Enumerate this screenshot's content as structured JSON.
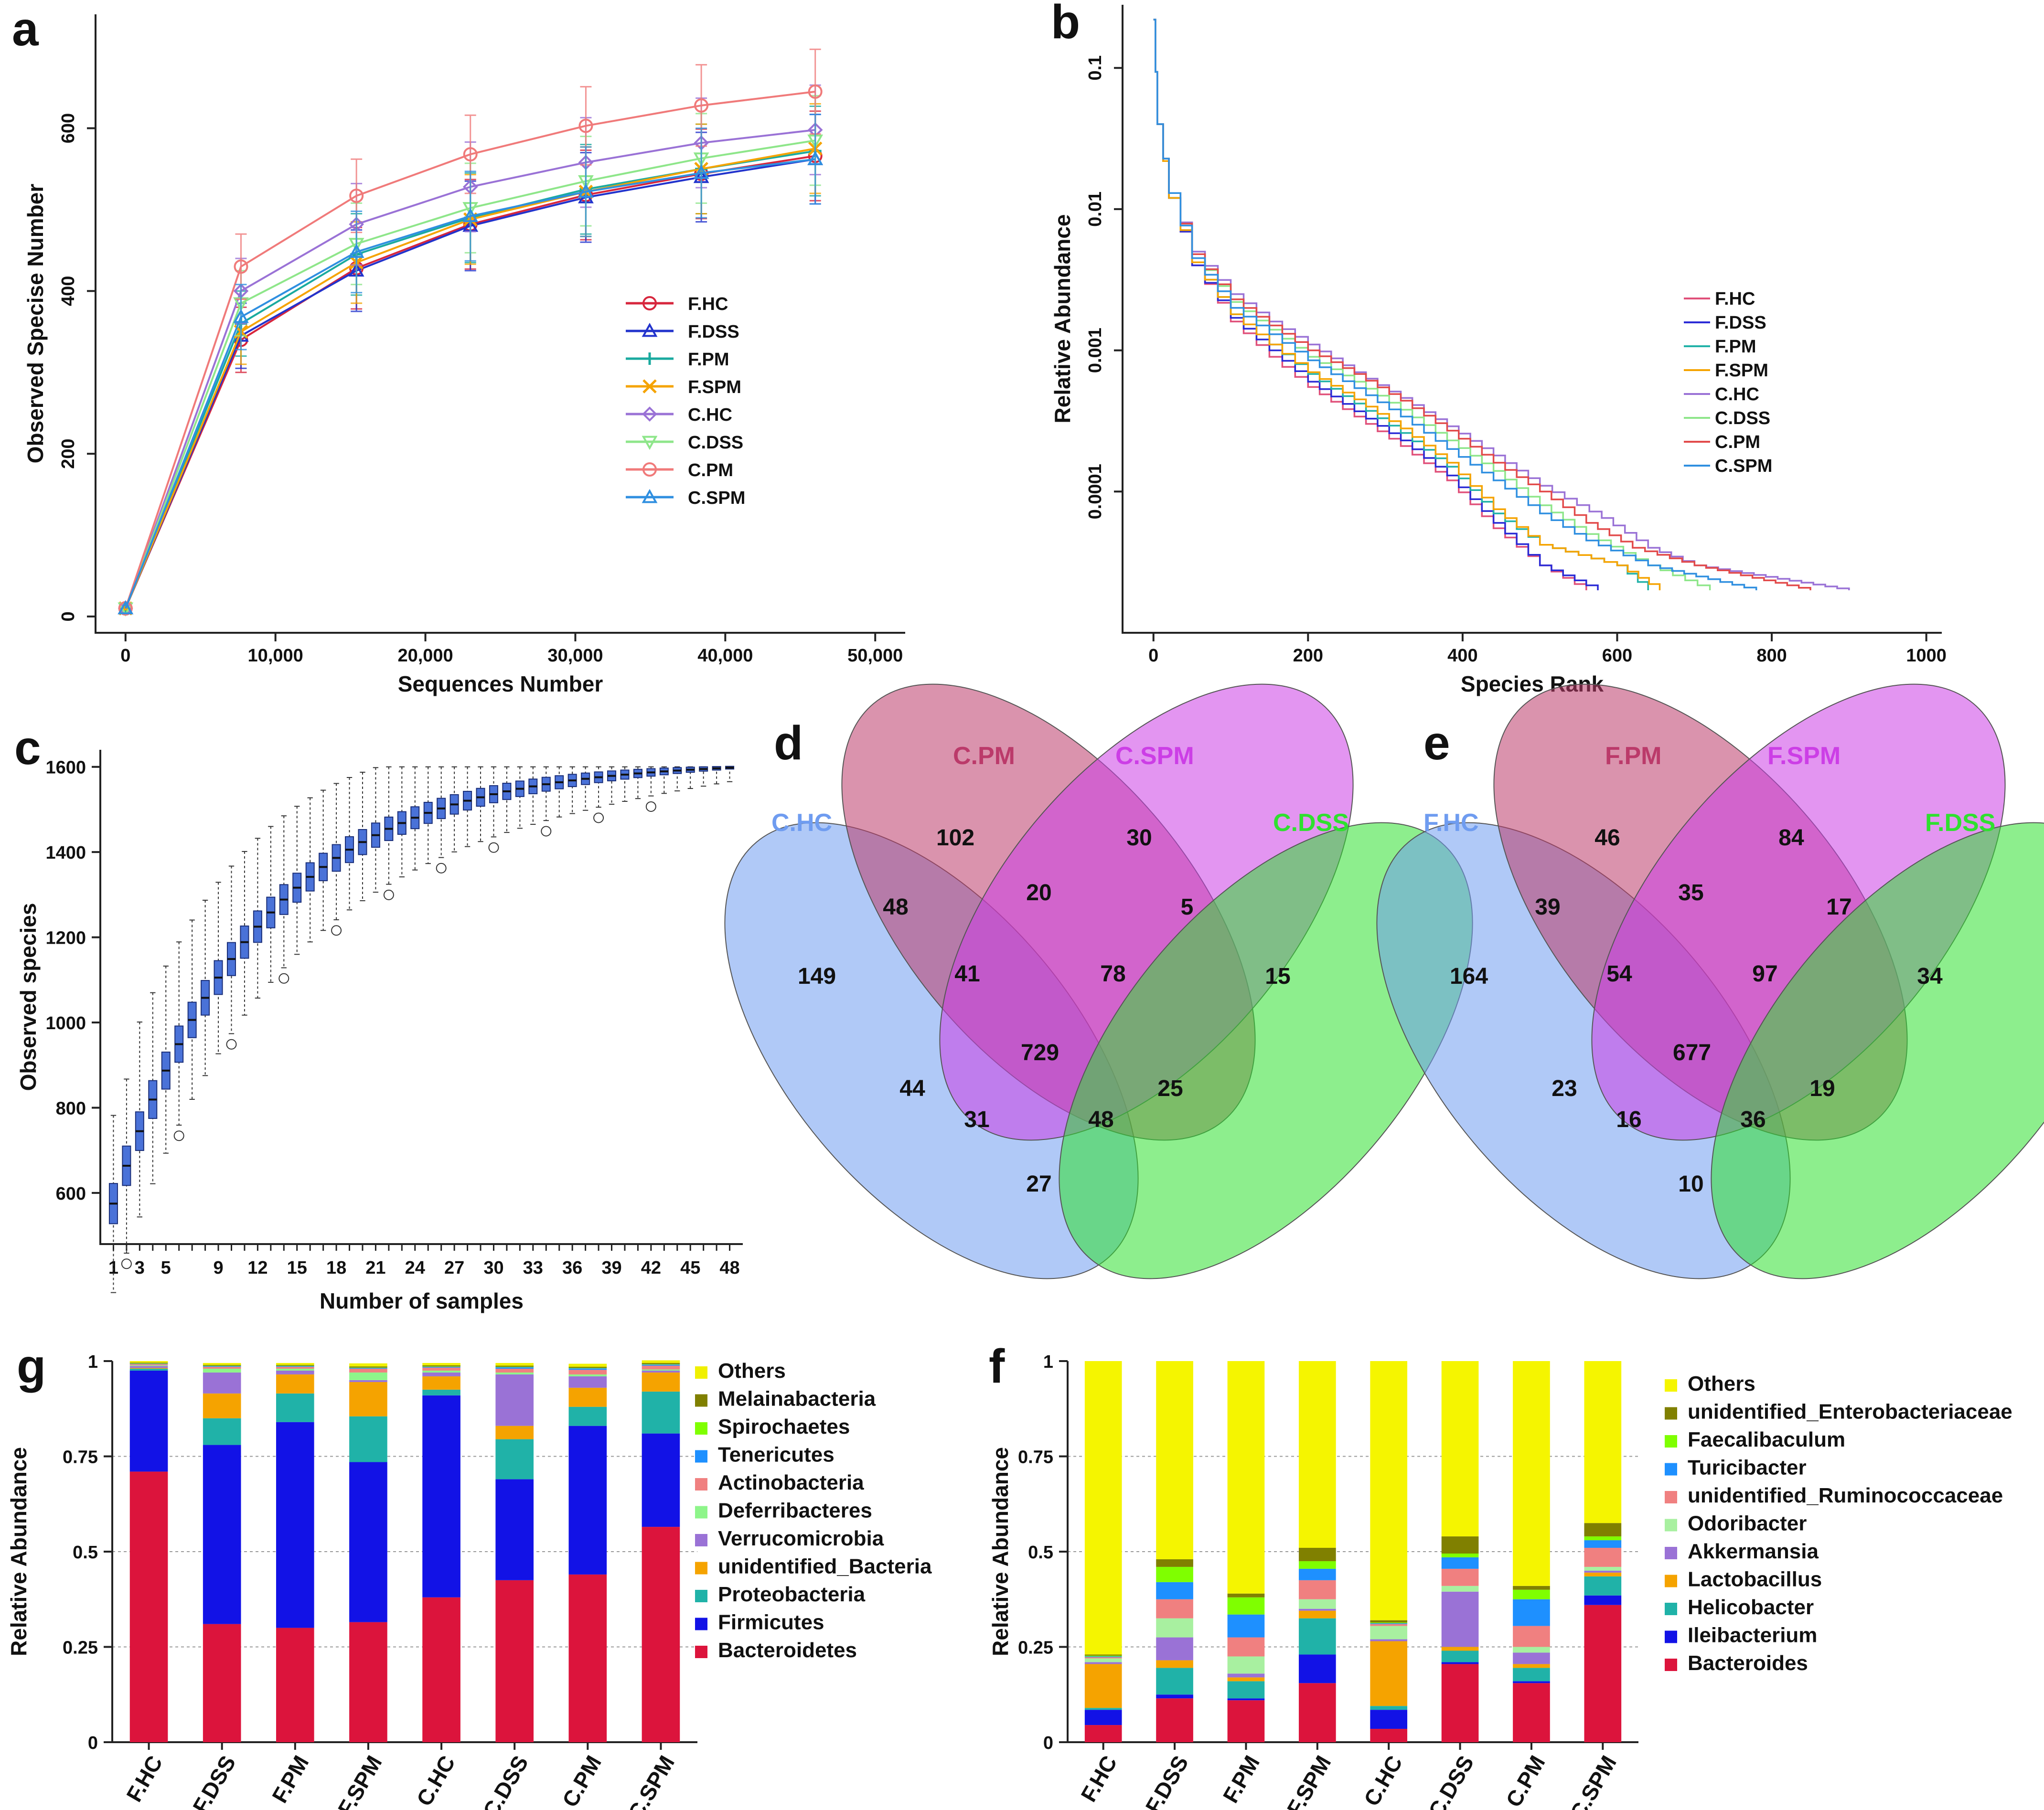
{
  "panels": {
    "a": {
      "label": "a"
    },
    "b": {
      "label": "b"
    },
    "c": {
      "label": "c"
    },
    "d": {
      "label": "d"
    },
    "e": {
      "label": "e"
    },
    "g": {
      "label": "g"
    },
    "f": {
      "label": "f"
    }
  },
  "chart_data": [
    {
      "id": "a",
      "type": "line",
      "xlabel": "Sequences  Number",
      "ylabel": "Observed  Specise  Number",
      "xlim": [
        -2000,
        52000
      ],
      "ylim": [
        -20,
        740
      ],
      "xticks": [
        0,
        10000,
        20000,
        30000,
        40000,
        50000
      ],
      "xtick_labels": [
        "0",
        "10,000",
        "20,000",
        "30,000",
        "40,000",
        "50,000"
      ],
      "yticks": [
        0,
        200,
        400,
        600
      ],
      "ytick_labels": [
        "0",
        "200",
        "400",
        "600"
      ],
      "legend_position": "center-right",
      "x": [
        0,
        7700,
        15400,
        23000,
        30700,
        38400,
        46000
      ],
      "series": [
        {
          "name": "F.HC",
          "color": "#d7263d",
          "marker": "circle",
          "values": [
            10,
            340,
            428,
            482,
            518,
            544,
            566
          ],
          "err": [
            0,
            40,
            50,
            55,
            55,
            55,
            55
          ]
        },
        {
          "name": "F.DSS",
          "color": "#2233cc",
          "marker": "triangle",
          "values": [
            10,
            345,
            425,
            480,
            515,
            540,
            562
          ],
          "err": [
            0,
            40,
            50,
            55,
            55,
            55,
            55
          ]
        },
        {
          "name": "F.PM",
          "color": "#1aaa9f",
          "marker": "plus",
          "values": [
            10,
            360,
            445,
            490,
            525,
            550,
            572
          ],
          "err": [
            0,
            40,
            50,
            55,
            55,
            55,
            55
          ]
        },
        {
          "name": "F.SPM",
          "color": "#f5a300",
          "marker": "x",
          "values": [
            10,
            350,
            435,
            488,
            522,
            550,
            575
          ],
          "err": [
            0,
            40,
            50,
            55,
            55,
            55,
            55
          ]
        },
        {
          "name": "C.HC",
          "color": "#9a72d6",
          "marker": "diamond",
          "values": [
            10,
            400,
            482,
            528,
            558,
            582,
            598
          ],
          "err": [
            0,
            40,
            50,
            55,
            55,
            55,
            55
          ]
        },
        {
          "name": "C.DSS",
          "color": "#8ee68a",
          "marker": "triangle-down",
          "values": [
            10,
            385,
            458,
            502,
            535,
            563,
            585
          ],
          "err": [
            0,
            40,
            50,
            55,
            55,
            55,
            55
          ]
        },
        {
          "name": "C.PM",
          "color": "#f07a7a",
          "marker": "circle",
          "values": [
            10,
            430,
            517,
            568,
            603,
            628,
            645
          ],
          "err": [
            0,
            40,
            45,
            48,
            48,
            50,
            52
          ]
        },
        {
          "name": "C.SPM",
          "color": "#2f8fe0",
          "marker": "triangle",
          "values": [
            10,
            368,
            448,
            492,
            522,
            545,
            562
          ],
          "err": [
            0,
            40,
            50,
            55,
            55,
            55,
            55
          ]
        }
      ]
    },
    {
      "id": "b",
      "type": "line",
      "xlabel": "Species  Rank",
      "ylabel": "Relative  Abundance",
      "y_scale": "log",
      "xlim": [
        -40,
        1020
      ],
      "xticks": [
        0,
        200,
        400,
        600,
        800,
        1000
      ],
      "xtick_labels": [
        "0",
        "200",
        "400",
        "600",
        "800",
        "1000"
      ],
      "yticks": [
        0.0001,
        0.001,
        0.01,
        0.1
      ],
      "ytick_labels": [
        "0.0001",
        "0.001",
        "0.01",
        "0.1"
      ],
      "legend_position": "center-right",
      "series": [
        {
          "name": "F.HC",
          "color": "#e0507a",
          "rank": [
            0,
            5,
            20,
            50,
            100,
            150,
            200,
            260,
            320,
            380,
            440,
            500,
            560
          ],
          "values": [
            0.22,
            0.04,
            0.012,
            0.004,
            0.0016,
            0.0009,
            0.00055,
            0.00034,
            0.00021,
            0.00012,
            5.5e-05,
            3e-05,
            2e-05
          ]
        },
        {
          "name": "F.DSS",
          "color": "#2b2bd6",
          "rank": [
            0,
            5,
            20,
            50,
            100,
            150,
            200,
            260,
            320,
            380,
            440,
            500,
            575
          ],
          "values": [
            0.22,
            0.04,
            0.012,
            0.004,
            0.0017,
            0.001,
            0.0006,
            0.00037,
            0.00023,
            0.00013,
            6e-05,
            3e-05,
            2e-05
          ]
        },
        {
          "name": "F.PM",
          "color": "#22b2a8",
          "rank": [
            0,
            5,
            20,
            50,
            100,
            150,
            200,
            260,
            320,
            380,
            440,
            500,
            600,
            640
          ],
          "values": [
            0.22,
            0.04,
            0.012,
            0.0042,
            0.0018,
            0.0011,
            0.00068,
            0.00042,
            0.00026,
            0.00015,
            7e-05,
            4.2e-05,
            3e-05,
            2e-05
          ]
        },
        {
          "name": "F.SPM",
          "color": "#f5a300",
          "rank": [
            0,
            5,
            20,
            50,
            100,
            150,
            200,
            260,
            320,
            380,
            440,
            500,
            600,
            655
          ],
          "values": [
            0.22,
            0.04,
            0.012,
            0.0042,
            0.0018,
            0.0011,
            0.0007,
            0.00045,
            0.00028,
            0.00016,
            7.5e-05,
            4.2e-05,
            3e-05,
            2e-05
          ]
        },
        {
          "name": "C.HC",
          "color": "#9a72d6",
          "rank": [
            0,
            5,
            20,
            50,
            100,
            150,
            200,
            260,
            320,
            380,
            440,
            500,
            580,
            640,
            700,
            900
          ],
          "values": [
            0.22,
            0.04,
            0.013,
            0.005,
            0.0025,
            0.0016,
            0.0011,
            0.0007,
            0.00046,
            0.00029,
            0.00018,
            0.00011,
            6.5e-05,
            4e-05,
            3e-05,
            2e-05
          ]
        },
        {
          "name": "C.DSS",
          "color": "#8ee68a",
          "rank": [
            0,
            5,
            20,
            50,
            100,
            150,
            200,
            260,
            320,
            380,
            440,
            500,
            560,
            640,
            720
          ],
          "values": [
            0.22,
            0.04,
            0.013,
            0.0048,
            0.0022,
            0.0014,
            0.0009,
            0.0006,
            0.00038,
            0.00023,
            0.00014,
            8e-05,
            5e-05,
            3e-05,
            2e-05
          ]
        },
        {
          "name": "C.PM",
          "color": "#e24a4a",
          "rank": [
            0,
            5,
            20,
            50,
            100,
            150,
            200,
            260,
            320,
            380,
            440,
            500,
            560,
            620,
            700,
            850
          ],
          "values": [
            0.22,
            0.04,
            0.013,
            0.0048,
            0.0023,
            0.0015,
            0.001,
            0.00068,
            0.00044,
            0.00027,
            0.00016,
            0.0001,
            6e-05,
            4e-05,
            3e-05,
            2e-05
          ]
        },
        {
          "name": "C.SPM",
          "color": "#2f8fe0",
          "rank": [
            0,
            5,
            20,
            50,
            100,
            150,
            200,
            260,
            320,
            380,
            440,
            500,
            560,
            640,
            780
          ],
          "values": [
            0.22,
            0.04,
            0.013,
            0.0045,
            0.002,
            0.0013,
            0.00085,
            0.00054,
            0.00034,
            0.0002,
            0.00012,
            7e-05,
            4.5e-05,
            3e-05,
            2e-05
          ]
        }
      ]
    },
    {
      "id": "c",
      "type": "box",
      "xlabel": "Number of samples",
      "ylabel": "Observed species",
      "xlim": [
        0,
        49
      ],
      "ylim": [
        480,
        1640
      ],
      "yticks": [
        600,
        800,
        1000,
        1200,
        1400,
        1600
      ],
      "ytick_labels": [
        "600",
        "800",
        "1000",
        "1200",
        "1400",
        "1600"
      ],
      "xticks": [
        1,
        3,
        5,
        9,
        12,
        15,
        18,
        21,
        24,
        27,
        30,
        33,
        36,
        39,
        42,
        45,
        48
      ],
      "xtick_labels": [
        "1",
        "3",
        "5",
        "9",
        "12",
        "15",
        "18",
        "21",
        "24",
        "27",
        "30",
        "33",
        "36",
        "39",
        "42",
        "45",
        "48"
      ],
      "n_boxes": 48,
      "box_color": "#4a72d8",
      "median_start": 575,
      "median_end": 1598,
      "median_curvature": 4.2
    },
    {
      "id": "d",
      "type": "venn",
      "sets": [
        {
          "name": "C.HC",
          "color": "#6f9cf0"
        },
        {
          "name": "C.PM",
          "color": "#bb3a6a"
        },
        {
          "name": "C.SPM",
          "color": "#cc3ee6"
        },
        {
          "name": "C.DSS",
          "color": "#2fe02f"
        }
      ],
      "regions": [
        "149",
        "102",
        "30",
        "15",
        "48",
        "20",
        "5",
        "41",
        "78",
        "729",
        "44",
        "25",
        "31",
        "48",
        "27"
      ]
    },
    {
      "id": "e",
      "type": "venn",
      "sets": [
        {
          "name": "F.HC",
          "color": "#6f9cf0"
        },
        {
          "name": "F.PM",
          "color": "#bb3a6a"
        },
        {
          "name": "F.SPM",
          "color": "#cc3ee6"
        },
        {
          "name": "F.DSS",
          "color": "#2fe02f"
        }
      ],
      "regions": [
        "164",
        "46",
        "84",
        "34",
        "39",
        "35",
        "17",
        "54",
        "97",
        "677",
        "23",
        "19",
        "16",
        "36",
        "10"
      ]
    },
    {
      "id": "g",
      "type": "bar",
      "stacked": true,
      "ylabel": "Relative Abundance",
      "ylim": [
        0,
        1
      ],
      "yticks": [
        0,
        0.25,
        0.5,
        0.75,
        1
      ],
      "ytick_labels": [
        "0",
        "0.25",
        "0.5",
        "0.75",
        "1"
      ],
      "categories": [
        "F.HC",
        "F.DSS",
        "F.PM",
        "F.SPM",
        "C.HC",
        "C.DSS",
        "C.PM",
        "C.SPM"
      ],
      "legend_position": "right",
      "series": [
        {
          "name": "Bacteroidetes",
          "color": "#dc143c",
          "values": [
            0.71,
            0.31,
            0.3,
            0.315,
            0.38,
            0.425,
            0.44,
            0.565
          ]
        },
        {
          "name": "Firmicutes",
          "color": "#1212e6",
          "values": [
            0.265,
            0.47,
            0.54,
            0.42,
            0.53,
            0.265,
            0.39,
            0.245
          ]
        },
        {
          "name": "Proteobacteria",
          "color": "#20b2a8",
          "values": [
            0.005,
            0.07,
            0.075,
            0.12,
            0.015,
            0.105,
            0.05,
            0.11
          ]
        },
        {
          "name": "unidentified_Bacteria",
          "color": "#f5a300",
          "values": [
            0.002,
            0.065,
            0.05,
            0.09,
            0.035,
            0.035,
            0.05,
            0.05
          ]
        },
        {
          "name": "Verrucomicrobia",
          "color": "#9a72d6",
          "values": [
            0.005,
            0.055,
            0.01,
            0.005,
            0.01,
            0.135,
            0.03,
            0.005
          ]
        },
        {
          "name": "Deferribacteres",
          "color": "#8ef58a",
          "values": [
            0.002,
            0.01,
            0.005,
            0.02,
            0.005,
            0.005,
            0.005,
            0.003
          ]
        },
        {
          "name": "Actinobacteria",
          "color": "#f08080",
          "values": [
            0.003,
            0.005,
            0.005,
            0.01,
            0.008,
            0.01,
            0.012,
            0.01
          ]
        },
        {
          "name": "Tenericutes",
          "color": "#1e90ff",
          "values": [
            0.001,
            0.002,
            0.002,
            0.002,
            0.002,
            0.004,
            0.004,
            0.003
          ]
        },
        {
          "name": "Spirochaetes",
          "color": "#7fff00",
          "values": [
            0.001,
            0.001,
            0.001,
            0.001,
            0.001,
            0.001,
            0.001,
            0.001
          ]
        },
        {
          "name": "Melainabacteria",
          "color": "#808000",
          "values": [
            0.002,
            0.002,
            0.002,
            0.003,
            0.003,
            0.003,
            0.003,
            0.003
          ]
        },
        {
          "name": "Others",
          "color": "#f0f000",
          "values": [
            0.004,
            0.005,
            0.005,
            0.008,
            0.006,
            0.007,
            0.008,
            0.007
          ]
        }
      ]
    },
    {
      "id": "f",
      "type": "bar",
      "stacked": true,
      "ylabel": "Relative Abundance",
      "ylim": [
        0,
        1
      ],
      "yticks": [
        0,
        0.25,
        0.5,
        0.75,
        1
      ],
      "ytick_labels": [
        "0",
        "0.25",
        "0.5",
        "0.75",
        "1"
      ],
      "categories": [
        "F.HC",
        "F.DSS",
        "F.PM",
        "F.SPM",
        "C.HC",
        "C.DSS",
        "C.PM",
        "C.SPM"
      ],
      "legend_position": "right",
      "series": [
        {
          "name": "Bacteroides",
          "color": "#dc143c",
          "values": [
            0.045,
            0.115,
            0.11,
            0.155,
            0.035,
            0.205,
            0.155,
            0.36
          ]
        },
        {
          "name": "Ileibacterium",
          "color": "#1212e6",
          "values": [
            0.04,
            0.01,
            0.005,
            0.075,
            0.05,
            0.005,
            0.005,
            0.025
          ]
        },
        {
          "name": "Helicobacter",
          "color": "#20b2a8",
          "values": [
            0.005,
            0.07,
            0.045,
            0.095,
            0.01,
            0.03,
            0.035,
            0.05
          ]
        },
        {
          "name": "Lactobacillus",
          "color": "#f5a300",
          "values": [
            0.115,
            0.02,
            0.01,
            0.02,
            0.17,
            0.01,
            0.01,
            0.01
          ]
        },
        {
          "name": "Akkermansia",
          "color": "#9a72d6",
          "values": [
            0.005,
            0.06,
            0.01,
            0.005,
            0.005,
            0.145,
            0.03,
            0.005
          ]
        },
        {
          "name": "Odoribacter",
          "color": "#a8f0a0",
          "values": [
            0.01,
            0.05,
            0.045,
            0.025,
            0.035,
            0.015,
            0.015,
            0.01
          ]
        },
        {
          "name": "unidentified_Ruminococcaceae",
          "color": "#f08080",
          "values": [
            0.003,
            0.05,
            0.05,
            0.05,
            0.005,
            0.045,
            0.055,
            0.05
          ]
        },
        {
          "name": "Turicibacter",
          "color": "#1e90ff",
          "values": [
            0.002,
            0.045,
            0.06,
            0.03,
            0.002,
            0.03,
            0.07,
            0.02
          ]
        },
        {
          "name": "Faecalibaculum",
          "color": "#7fff00",
          "values": [
            0.002,
            0.04,
            0.045,
            0.02,
            0.002,
            0.01,
            0.025,
            0.01
          ]
        },
        {
          "name": "unidentified_Enterobacteriaceae",
          "color": "#808000",
          "values": [
            0.003,
            0.02,
            0.01,
            0.035,
            0.006,
            0.045,
            0.01,
            0.035
          ]
        },
        {
          "name": "Others",
          "color": "#f5f500",
          "values": [
            0.77,
            0.52,
            0.61,
            0.49,
            0.68,
            0.46,
            0.59,
            0.425
          ]
        }
      ]
    }
  ]
}
